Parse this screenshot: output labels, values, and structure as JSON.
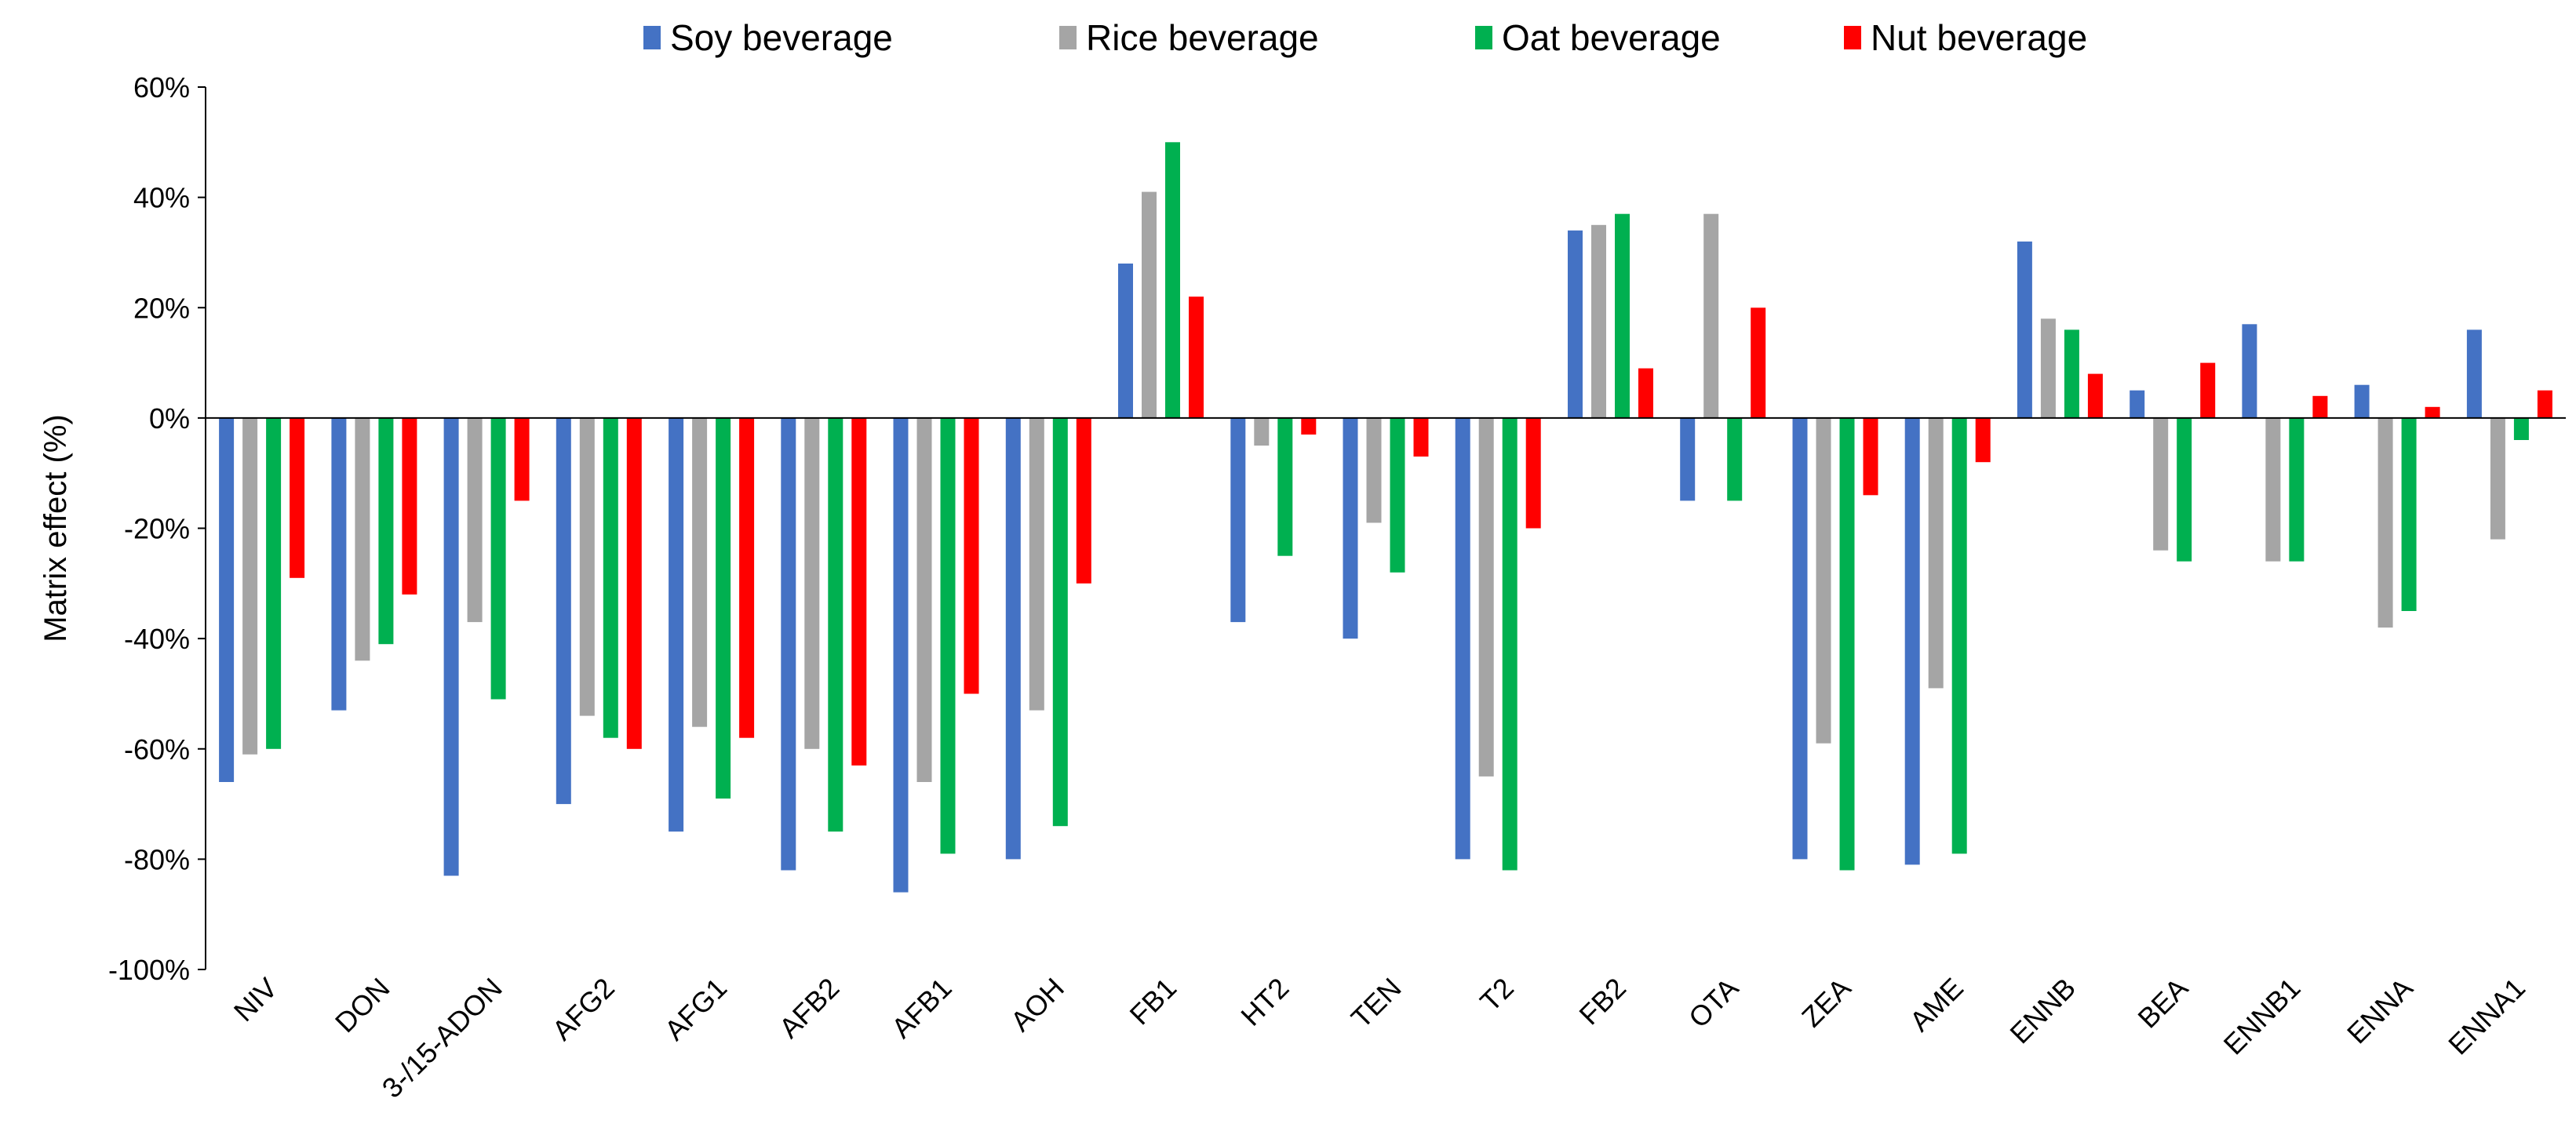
{
  "chart_data": {
    "type": "bar",
    "title": "",
    "xlabel": "",
    "ylabel": "Matrix effect (%)",
    "ylim": [
      -100,
      60
    ],
    "yticks": [
      60,
      40,
      20,
      0,
      -20,
      -40,
      -60,
      -80,
      -100
    ],
    "ytick_labels": [
      "60%",
      "40%",
      "20%",
      "0%",
      "-20%",
      "-40%",
      "-60%",
      "-80%",
      "-100%"
    ],
    "grid": false,
    "legend_position": "top",
    "categories": [
      "NIV",
      "DON",
      "3-/15-ADON",
      "AFG2",
      "AFG1",
      "AFB2",
      "AFB1",
      "AOH",
      "FB1",
      "HT2",
      "TEN",
      "T2",
      "FB2",
      "OTA",
      "ZEA",
      "AME",
      "ENNB",
      "BEA",
      "ENNB1",
      "ENNA",
      "ENNA1"
    ],
    "series": [
      {
        "name": "Soy beverage",
        "color": "#4472C4",
        "values": [
          -66,
          -53,
          -83,
          -70,
          -75,
          -82,
          -86,
          -80,
          28,
          -37,
          -40,
          -80,
          34,
          -15,
          -80,
          -81,
          32,
          5,
          17,
          6,
          16
        ]
      },
      {
        "name": "Rice beverage",
        "color": "#A5A5A5",
        "values": [
          -61,
          -44,
          -37,
          -54,
          -56,
          -60,
          -66,
          -53,
          41,
          -5,
          -19,
          -65,
          35,
          37,
          -59,
          -49,
          18,
          -24,
          -26,
          -38,
          -22
        ]
      },
      {
        "name": "Oat beverage",
        "color": "#00B050",
        "values": [
          -60,
          -41,
          -51,
          -58,
          -69,
          -75,
          -79,
          -74,
          50,
          -25,
          -28,
          -82,
          37,
          -15,
          -82,
          -79,
          16,
          -26,
          -26,
          -35,
          -4
        ]
      },
      {
        "name": "Nut beverage",
        "color": "#FF0000",
        "values": [
          -29,
          -32,
          -15,
          -60,
          -58,
          -63,
          -50,
          -30,
          22,
          -3,
          -7,
          -20,
          9,
          20,
          -14,
          -8,
          8,
          10,
          4,
          2,
          5
        ]
      }
    ]
  }
}
